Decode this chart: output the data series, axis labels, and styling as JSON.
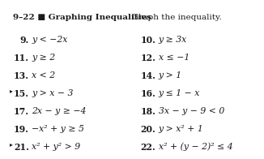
{
  "title_bold": "9–22 ■ Graphing Inequalities",
  "title_normal": "Graph the inequality.",
  "background_color": "#ffffff",
  "items": [
    {
      "num": "9.",
      "text": "y < −2x",
      "bullet": false,
      "col": 0
    },
    {
      "num": "10.",
      "text": "y ≥ 3x",
      "bullet": false,
      "col": 1
    },
    {
      "num": "11.",
      "text": "y ≥ 2",
      "bullet": false,
      "col": 0
    },
    {
      "num": "12.",
      "text": "x ≤ −1",
      "bullet": false,
      "col": 1
    },
    {
      "num": "13.",
      "text": "x < 2",
      "bullet": false,
      "col": 0
    },
    {
      "num": "14.",
      "text": "y > 1",
      "bullet": false,
      "col": 1
    },
    {
      "num": "15.",
      "text": "y > x − 3",
      "bullet": true,
      "col": 0
    },
    {
      "num": "16.",
      "text": "y ≤ 1 − x",
      "bullet": false,
      "col": 1
    },
    {
      "num": "17.",
      "text": "2x − y ≥ −4",
      "bullet": false,
      "col": 0
    },
    {
      "num": "18.",
      "text": "3x − y − 9 < 0",
      "bullet": false,
      "col": 1
    },
    {
      "num": "19.",
      "text": "−x² + y ≥ 5",
      "bullet": false,
      "col": 0
    },
    {
      "num": "20.",
      "text": "y > x² + 1",
      "bullet": false,
      "col": 1
    },
    {
      "num": "21.",
      "text": "x² + y² > 9",
      "bullet": true,
      "col": 0
    },
    {
      "num": "22.",
      "text": "x² + (y − 2)² ≤ 4",
      "bullet": false,
      "col": 1
    }
  ],
  "title_fontsize": 7.5,
  "item_fontsize": 7.8,
  "text_color": "#1a1a1a"
}
